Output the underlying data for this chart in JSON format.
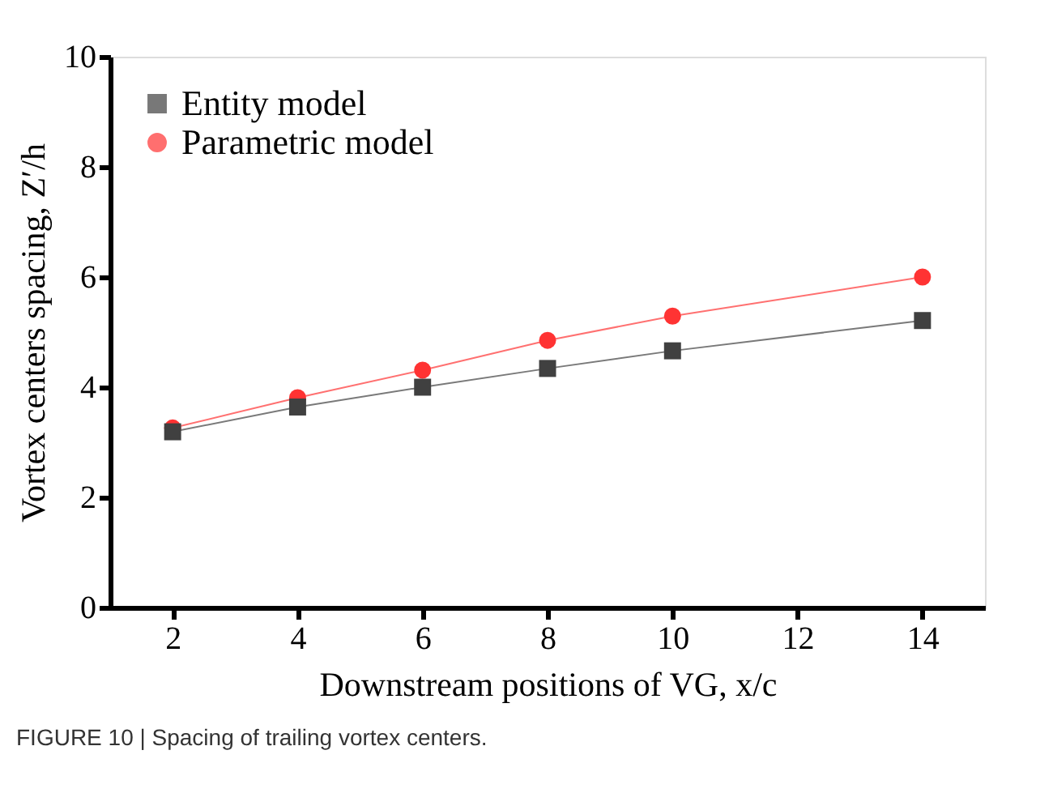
{
  "chart_data": {
    "type": "line",
    "xlabel": "Downstream positions of  VG,  x/c",
    "ylabel": "Vortex centers spacing, Z′/h",
    "x": [
      2,
      4,
      6,
      8,
      10,
      14
    ],
    "series": [
      {
        "name": "Entity model",
        "color": "#404040",
        "marker": "square",
        "values": [
          3.19,
          3.64,
          4.0,
          4.34,
          4.66,
          5.21
        ]
      },
      {
        "name": "Parametric model",
        "color": "#ff3333",
        "marker": "circle",
        "values": [
          3.26,
          3.81,
          4.31,
          4.85,
          5.29,
          6.0
        ]
      }
    ],
    "xlim": [
      1,
      15
    ],
    "xticks": [
      2,
      4,
      6,
      8,
      10,
      12,
      14
    ],
    "ylim": [
      0,
      10
    ],
    "yticks": [
      0,
      2,
      4,
      6,
      8,
      10
    ],
    "grid": false,
    "legend": "top left",
    "line_style": "solid",
    "annotations": [
      "FIGURE 10 | Spacing of trailing vortex centers."
    ]
  }
}
